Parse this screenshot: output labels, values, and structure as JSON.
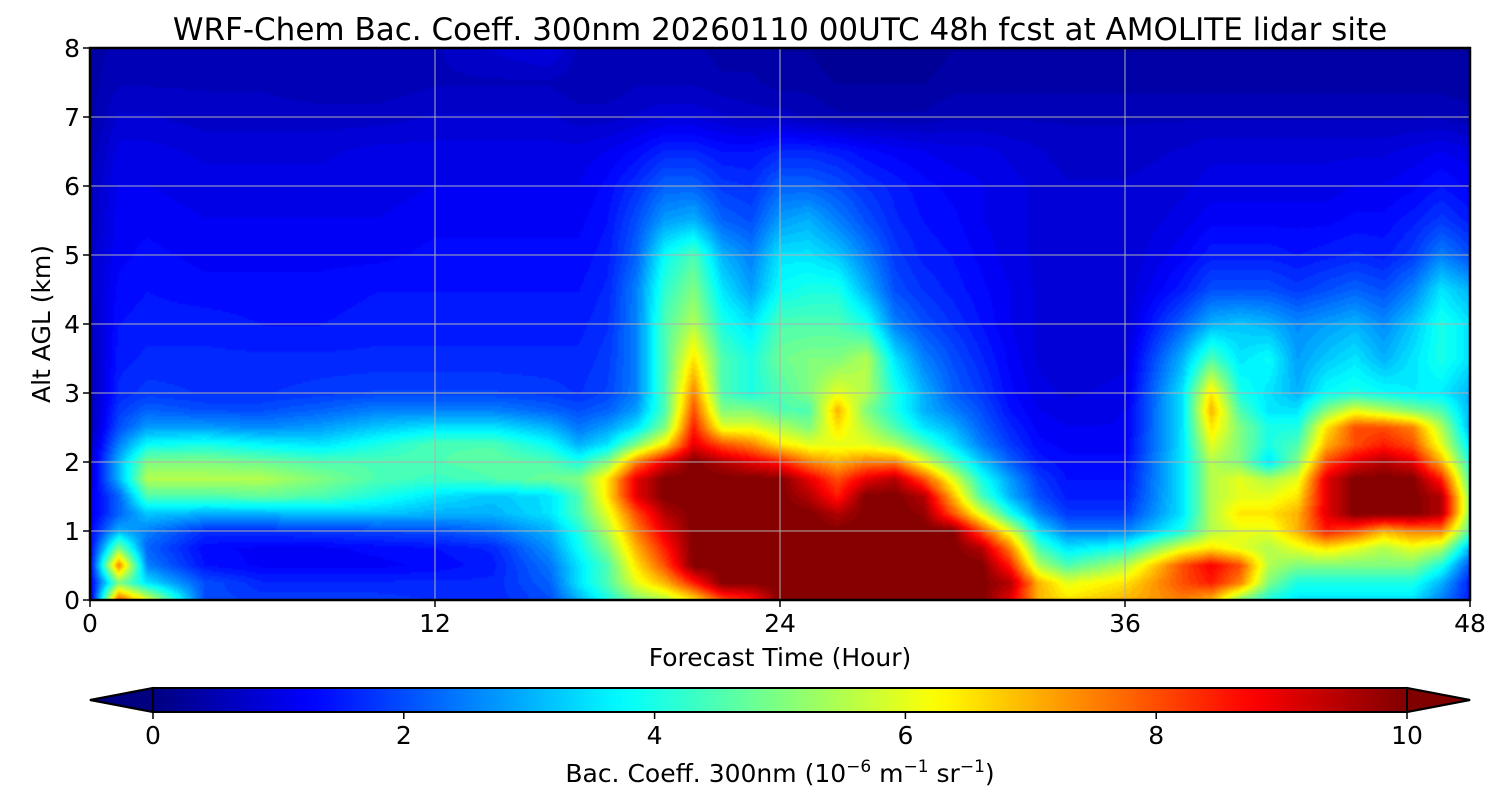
{
  "chart_data": {
    "type": "heatmap",
    "title": "WRF-Chem Bac. Coeff. 300nm  20260110 00UTC 48h fcst at AMOLITE lidar site",
    "xlabel": "Forecast Time (Hour)",
    "ylabel": "Alt AGL (km)",
    "xlim": [
      0,
      48
    ],
    "ylim": [
      0,
      8
    ],
    "xticks": [
      0,
      12,
      24,
      36,
      48
    ],
    "yticks": [
      0,
      1,
      2,
      3,
      4,
      5,
      6,
      7,
      8
    ],
    "grid": true,
    "colormap": "jet",
    "colorbar": {
      "orientation": "horizontal",
      "placement": "bottom",
      "ticks": [
        0,
        2,
        4,
        6,
        8,
        10
      ],
      "vmin": 0,
      "vmax": 10,
      "extend": "both",
      "label_main": "Bac. Coeff. 300nm  (10",
      "label_exp1": "−6",
      "label_unit1": " m",
      "label_exp2": "−1",
      "label_unit2": " sr",
      "label_exp3": "−1",
      "label_close": ")"
    },
    "x": [
      0,
      1,
      2,
      4,
      6,
      8,
      10,
      12,
      14,
      16,
      17,
      18,
      19,
      20,
      21,
      22,
      23,
      24,
      25,
      26,
      27,
      28,
      29,
      30,
      31,
      32,
      33,
      34,
      36,
      38,
      39,
      40,
      41,
      42,
      43,
      44,
      45,
      46,
      47,
      48
    ],
    "y": [
      0,
      0.25,
      0.5,
      0.75,
      1,
      1.25,
      1.5,
      1.75,
      2,
      2.25,
      2.5,
      2.75,
      3,
      3.5,
      4,
      4.5,
      5,
      5.5,
      6,
      6.5,
      7,
      7.5,
      8
    ],
    "z": [
      [
        0.8,
        8.0,
        6.0,
        2.0,
        1.8,
        1.8,
        1.8,
        1.7,
        1.6,
        2.0,
        3.0,
        4.0,
        5.0,
        5.5,
        6.5,
        8.0,
        8.5,
        10.0,
        10.0,
        10.0,
        10.0,
        10.0,
        10.0,
        10.0,
        10.0,
        9.0,
        7.0,
        6.5,
        7.0,
        7.5,
        7.0,
        5.0,
        4.0,
        3.5,
        3.5,
        3.5,
        3.5,
        3.5,
        2.5,
        1.5
      ],
      [
        1.0,
        5.0,
        3.5,
        2.0,
        1.6,
        1.6,
        1.6,
        1.6,
        1.6,
        2.2,
        3.5,
        4.5,
        6.0,
        7.0,
        8.5,
        10.0,
        10.0,
        10.0,
        10.0,
        10.0,
        10.0,
        10.0,
        10.0,
        10.0,
        10.0,
        9.5,
        7.0,
        6.0,
        6.5,
        8.0,
        8.5,
        7.5,
        5.0,
        4.0,
        4.0,
        4.0,
        4.0,
        4.0,
        3.0,
        1.5
      ],
      [
        1.2,
        7.5,
        2.5,
        1.4,
        1.2,
        1.2,
        1.2,
        1.3,
        1.5,
        2.4,
        3.5,
        4.5,
        6.5,
        8.0,
        10.0,
        10.0,
        10.0,
        10.0,
        10.0,
        10.0,
        10.0,
        10.0,
        10.0,
        10.0,
        10.0,
        8.5,
        5.5,
        4.5,
        5.5,
        8.0,
        8.8,
        8.0,
        5.5,
        5.0,
        5.0,
        5.0,
        5.0,
        5.0,
        4.0,
        2.0
      ],
      [
        1.2,
        5.0,
        2.2,
        1.3,
        1.2,
        1.2,
        1.3,
        1.4,
        1.6,
        2.7,
        3.8,
        5.0,
        7.0,
        8.5,
        10.0,
        10.0,
        10.0,
        10.0,
        10.0,
        10.0,
        10.0,
        10.0,
        10.0,
        10.0,
        9.5,
        7.5,
        4.5,
        3.5,
        4.0,
        6.0,
        6.5,
        6.0,
        5.5,
        6.0,
        6.5,
        6.0,
        5.5,
        6.0,
        5.5,
        3.0
      ],
      [
        1.2,
        3.0,
        2.5,
        1.7,
        1.7,
        1.8,
        1.9,
        2.0,
        2.3,
        3.0,
        4.0,
        5.5,
        7.5,
        9.0,
        10.0,
        10.0,
        10.0,
        10.0,
        10.0,
        10.0,
        10.0,
        10.0,
        10.0,
        10.0,
        8.0,
        6.0,
        3.5,
        2.5,
        2.5,
        4.0,
        5.5,
        6.0,
        6.0,
        7.0,
        8.5,
        8.0,
        7.0,
        7.5,
        7.5,
        4.5
      ],
      [
        1.0,
        2.2,
        3.2,
        3.0,
        3.0,
        3.2,
        3.2,
        3.0,
        3.0,
        3.5,
        4.5,
        6.0,
        8.0,
        9.5,
        10.0,
        10.0,
        10.0,
        10.0,
        10.0,
        9.5,
        10.0,
        10.0,
        9.8,
        8.0,
        6.0,
        4.0,
        2.5,
        1.8,
        1.8,
        3.5,
        5.5,
        6.5,
        6.5,
        7.0,
        9.0,
        10.0,
        10.0,
        10.0,
        9.5,
        5.0
      ],
      [
        1.0,
        2.2,
        4.5,
        4.5,
        4.7,
        4.5,
        4.0,
        3.5,
        3.2,
        3.5,
        4.5,
        6.5,
        9.0,
        10.0,
        10.0,
        10.0,
        10.0,
        10.0,
        9.5,
        8.5,
        10.0,
        10.0,
        9.5,
        7.0,
        4.5,
        3.0,
        2.0,
        1.5,
        1.5,
        3.5,
        5.5,
        6.0,
        6.0,
        6.5,
        9.0,
        10.0,
        10.0,
        10.0,
        9.5,
        5.0
      ],
      [
        0.8,
        3.0,
        5.5,
        5.5,
        5.5,
        5.0,
        4.5,
        4.3,
        4.5,
        4.8,
        5.0,
        6.5,
        9.0,
        10.0,
        10.0,
        10.0,
        10.0,
        10.0,
        9.0,
        8.0,
        9.0,
        9.5,
        8.0,
        6.0,
        4.0,
        2.8,
        1.8,
        1.4,
        1.4,
        3.5,
        5.5,
        6.0,
        5.5,
        6.0,
        9.0,
        10.0,
        10.0,
        10.0,
        8.5,
        4.5
      ],
      [
        0.7,
        3.0,
        5.0,
        5.0,
        4.8,
        4.5,
        4.5,
        4.5,
        4.7,
        4.5,
        4.0,
        5.0,
        7.5,
        9.0,
        10.0,
        9.5,
        9.0,
        8.5,
        7.5,
        7.0,
        7.5,
        7.5,
        6.0,
        4.5,
        3.2,
        2.2,
        1.5,
        1.3,
        1.3,
        3.5,
        5.5,
        5.0,
        3.5,
        5.0,
        8.0,
        9.0,
        9.5,
        9.0,
        7.0,
        4.0
      ],
      [
        0.6,
        2.5,
        3.8,
        4.0,
        3.7,
        3.5,
        4.0,
        4.5,
        4.5,
        3.8,
        3.0,
        3.5,
        5.0,
        6.5,
        9.0,
        8.0,
        7.5,
        6.5,
        6.0,
        6.0,
        6.0,
        5.5,
        4.5,
        3.5,
        2.5,
        1.8,
        1.3,
        1.2,
        1.2,
        3.5,
        6.0,
        5.0,
        4.0,
        4.5,
        7.0,
        8.0,
        8.5,
        8.0,
        6.0,
        3.5
      ],
      [
        0.5,
        2.0,
        2.8,
        2.8,
        2.6,
        2.8,
        3.2,
        3.5,
        3.5,
        3.0,
        2.4,
        2.8,
        3.5,
        5.0,
        8.5,
        6.0,
        6.0,
        5.5,
        5.0,
        6.5,
        5.5,
        4.5,
        3.5,
        3.0,
        2.2,
        1.6,
        1.2,
        1.1,
        1.1,
        3.5,
        6.5,
        5.0,
        4.0,
        4.0,
        6.5,
        8.0,
        8.0,
        7.5,
        5.5,
        3.0
      ],
      [
        0.5,
        1.8,
        2.2,
        2.0,
        2.0,
        2.2,
        2.5,
        2.5,
        2.5,
        2.2,
        2.0,
        2.2,
        2.8,
        4.5,
        8.0,
        5.0,
        5.0,
        4.5,
        4.5,
        7.0,
        5.0,
        4.0,
        3.0,
        2.5,
        2.0,
        1.4,
        1.1,
        1.0,
        1.1,
        3.5,
        7.0,
        4.5,
        3.5,
        3.5,
        5.0,
        6.0,
        5.5,
        5.0,
        4.5,
        3.0
      ],
      [
        0.5,
        1.6,
        1.8,
        1.7,
        1.7,
        1.8,
        1.9,
        1.9,
        1.9,
        1.8,
        1.7,
        1.9,
        2.5,
        4.5,
        7.5,
        4.5,
        4.0,
        4.5,
        5.0,
        6.0,
        5.5,
        4.0,
        3.0,
        2.2,
        1.8,
        1.3,
        1.0,
        0.9,
        1.0,
        3.5,
        6.5,
        4.0,
        3.5,
        3.0,
        3.8,
        4.0,
        3.8,
        3.6,
        3.6,
        3.0
      ],
      [
        0.5,
        1.5,
        1.6,
        1.6,
        1.6,
        1.6,
        1.6,
        1.6,
        1.6,
        1.6,
        1.6,
        1.8,
        2.5,
        4.5,
        6.5,
        4.5,
        4.0,
        4.8,
        5.0,
        5.0,
        5.5,
        3.5,
        2.5,
        2.0,
        1.6,
        1.2,
        0.9,
        0.8,
        0.9,
        3.0,
        4.5,
        3.5,
        3.8,
        2.8,
        3.2,
        3.5,
        3.0,
        3.5,
        4.0,
        3.5
      ],
      [
        0.6,
        1.4,
        1.5,
        1.5,
        1.4,
        1.4,
        1.5,
        1.5,
        1.5,
        1.5,
        1.5,
        1.7,
        2.5,
        4.5,
        5.5,
        4.0,
        3.5,
        4.5,
        4.5,
        4.5,
        4.0,
        2.5,
        2.0,
        1.7,
        1.4,
        1.1,
        0.9,
        0.8,
        0.8,
        2.2,
        3.0,
        3.2,
        3.0,
        2.6,
        2.8,
        3.0,
        2.6,
        3.2,
        4.0,
        3.5
      ],
      [
        0.7,
        1.3,
        1.4,
        1.3,
        1.3,
        1.3,
        1.4,
        1.4,
        1.4,
        1.4,
        1.4,
        1.6,
        2.5,
        4.2,
        5.0,
        3.5,
        2.8,
        3.8,
        4.0,
        4.0,
        3.0,
        2.0,
        1.7,
        1.5,
        1.3,
        1.1,
        0.9,
        0.8,
        0.8,
        1.5,
        2.0,
        2.0,
        2.0,
        1.8,
        2.0,
        2.2,
        2.0,
        2.5,
        3.5,
        3.0
      ],
      [
        0.7,
        1.2,
        1.3,
        1.2,
        1.2,
        1.2,
        1.2,
        1.3,
        1.3,
        1.3,
        1.3,
        1.5,
        2.2,
        3.8,
        4.5,
        3.0,
        2.5,
        3.5,
        3.5,
        3.2,
        2.5,
        1.8,
        1.5,
        1.4,
        1.2,
        1.0,
        0.9,
        0.8,
        0.8,
        1.2,
        1.5,
        1.5,
        1.5,
        1.4,
        1.5,
        1.6,
        1.5,
        1.8,
        2.5,
        2.0
      ],
      [
        0.6,
        1.2,
        1.2,
        1.1,
        1.1,
        1.1,
        1.1,
        1.2,
        1.2,
        1.2,
        1.2,
        1.4,
        2.0,
        2.8,
        3.0,
        2.2,
        2.0,
        2.8,
        3.0,
        2.5,
        2.0,
        1.6,
        1.4,
        1.3,
        1.1,
        1.0,
        0.9,
        0.8,
        0.8,
        1.0,
        1.2,
        1.2,
        1.2,
        1.2,
        1.2,
        1.3,
        1.3,
        1.5,
        1.8,
        1.5
      ],
      [
        0.6,
        1.1,
        1.1,
        1.0,
        1.0,
        1.0,
        1.0,
        1.1,
        1.1,
        1.1,
        1.1,
        1.3,
        1.7,
        2.2,
        2.2,
        1.8,
        1.7,
        2.2,
        2.2,
        2.0,
        1.7,
        1.5,
        1.3,
        1.2,
        1.1,
        1.0,
        0.9,
        0.8,
        0.8,
        0.9,
        1.0,
        1.0,
        1.0,
        1.0,
        1.0,
        1.1,
        1.1,
        1.2,
        1.4,
        1.2
      ],
      [
        0.5,
        1.0,
        1.0,
        0.9,
        0.9,
        0.9,
        1.0,
        1.0,
        1.0,
        1.0,
        1.0,
        1.1,
        1.3,
        1.6,
        1.6,
        1.4,
        1.4,
        1.6,
        1.6,
        1.5,
        1.3,
        1.2,
        1.1,
        1.0,
        1.0,
        0.9,
        0.8,
        0.7,
        0.7,
        0.8,
        0.9,
        0.9,
        0.9,
        0.9,
        0.9,
        0.9,
        0.9,
        1.0,
        1.1,
        1.0
      ],
      [
        0.4,
        0.8,
        0.8,
        0.7,
        0.7,
        0.7,
        0.7,
        0.8,
        0.8,
        0.8,
        0.7,
        0.7,
        0.8,
        0.9,
        0.9,
        0.8,
        0.7,
        0.7,
        0.6,
        0.5,
        0.5,
        0.5,
        0.5,
        0.6,
        0.6,
        0.6,
        0.6,
        0.6,
        0.6,
        0.6,
        0.6,
        0.6,
        0.6,
        0.6,
        0.6,
        0.6,
        0.6,
        0.6,
        0.6,
        0.5
      ],
      [
        0.4,
        0.6,
        0.6,
        0.6,
        0.6,
        0.5,
        0.5,
        0.6,
        0.6,
        0.6,
        0.5,
        0.5,
        0.6,
        0.6,
        0.6,
        0.5,
        0.5,
        0.4,
        0.4,
        0.3,
        0.3,
        0.3,
        0.3,
        0.4,
        0.4,
        0.4,
        0.4,
        0.4,
        0.4,
        0.4,
        0.4,
        0.4,
        0.4,
        0.4,
        0.4,
        0.4,
        0.4,
        0.4,
        0.4,
        0.4
      ],
      [
        0.4,
        0.5,
        0.5,
        0.5,
        0.5,
        0.5,
        0.5,
        0.6,
        0.8,
        1.0,
        0.6,
        0.5,
        0.5,
        0.5,
        0.5,
        0.4,
        0.4,
        0.3,
        0.3,
        0.2,
        0.2,
        0.2,
        0.2,
        0.3,
        0.3,
        0.3,
        0.3,
        0.3,
        0.3,
        0.3,
        0.3,
        0.3,
        0.3,
        0.3,
        0.3,
        0.3,
        0.3,
        0.3,
        0.3,
        0.3
      ]
    ]
  }
}
